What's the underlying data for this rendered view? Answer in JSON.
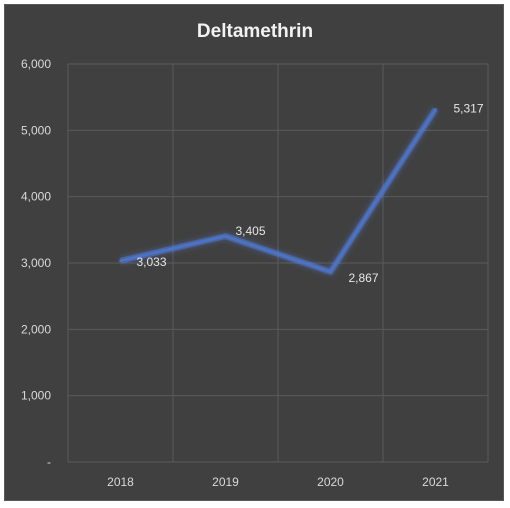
{
  "chart_data": {
    "type": "line",
    "title": "Deltamethrin",
    "categories": [
      "2018",
      "2019",
      "2020",
      "2021"
    ],
    "series": [
      {
        "values": [
          3033,
          3405,
          2867,
          5317
        ]
      }
    ],
    "data_labels": [
      "3,033",
      "3,405",
      "2,867",
      "5,317"
    ],
    "y_ticks": [
      0,
      1000,
      2000,
      3000,
      4000,
      5000,
      6000
    ],
    "y_tick_labels": [
      "-",
      "1,000",
      "2,000",
      "3,000",
      "4,000",
      "5,000",
      "6,000"
    ],
    "ylim": [
      0,
      6000
    ],
    "grid": true,
    "legend": "none",
    "colors": {
      "background": "#404040",
      "grid": "#5a5a5a",
      "line": "#4a74c9",
      "line_glow": "#5b8cff",
      "text": "#d9d9d9"
    }
  }
}
